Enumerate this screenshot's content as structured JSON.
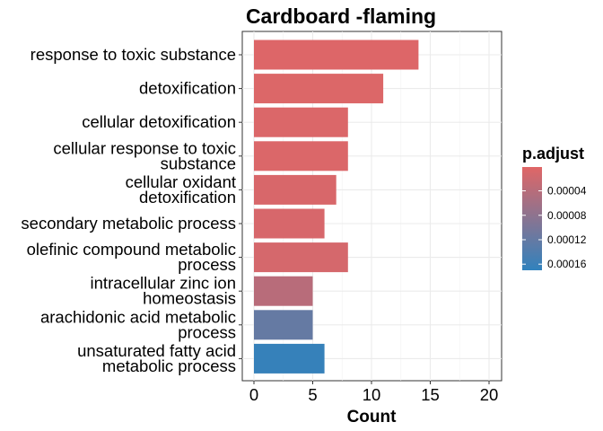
{
  "chart_data": {
    "type": "bar",
    "orientation": "horizontal",
    "title": "Cardboard -flaming",
    "xlabel": "Count",
    "ylabel": "",
    "xlim": [
      0,
      21
    ],
    "x_ticks": [
      0,
      5,
      10,
      15,
      20
    ],
    "grid": true,
    "categories": [
      [
        "response to toxic substance"
      ],
      [
        "detoxification"
      ],
      [
        "cellular detoxification"
      ],
      [
        "cellular response to toxic",
        "substance"
      ],
      [
        "cellular oxidant",
        "detoxification"
      ],
      [
        "secondary metabolic process"
      ],
      [
        "olefinic compound metabolic",
        "process"
      ],
      [
        "intracellular zinc ion",
        "homeostasis"
      ],
      [
        "arachidonic acid metabolic",
        "process"
      ],
      [
        "unsaturated fatty acid",
        "metabolic process"
      ]
    ],
    "values": [
      14,
      11,
      8,
      8,
      7,
      6,
      8,
      5,
      5,
      6
    ],
    "p_adjust": [
      4e-06,
      5e-06,
      6e-06,
      6e-06,
      9e-06,
      1e-05,
      1.2e-05,
      4e-05,
      0.00012,
      0.000165
    ],
    "legend": {
      "title": "p.adjust",
      "placement": "right",
      "ticks": [
        4e-05,
        8e-05,
        0.00012,
        0.00016
      ],
      "tick_labels": [
        "0.00004",
        "0.00008",
        "0.00012",
        "0.00016"
      ],
      "range": [
        1e-06,
        0.00017
      ],
      "low_color": "#E06666",
      "high_color": "#3182BD"
    }
  }
}
